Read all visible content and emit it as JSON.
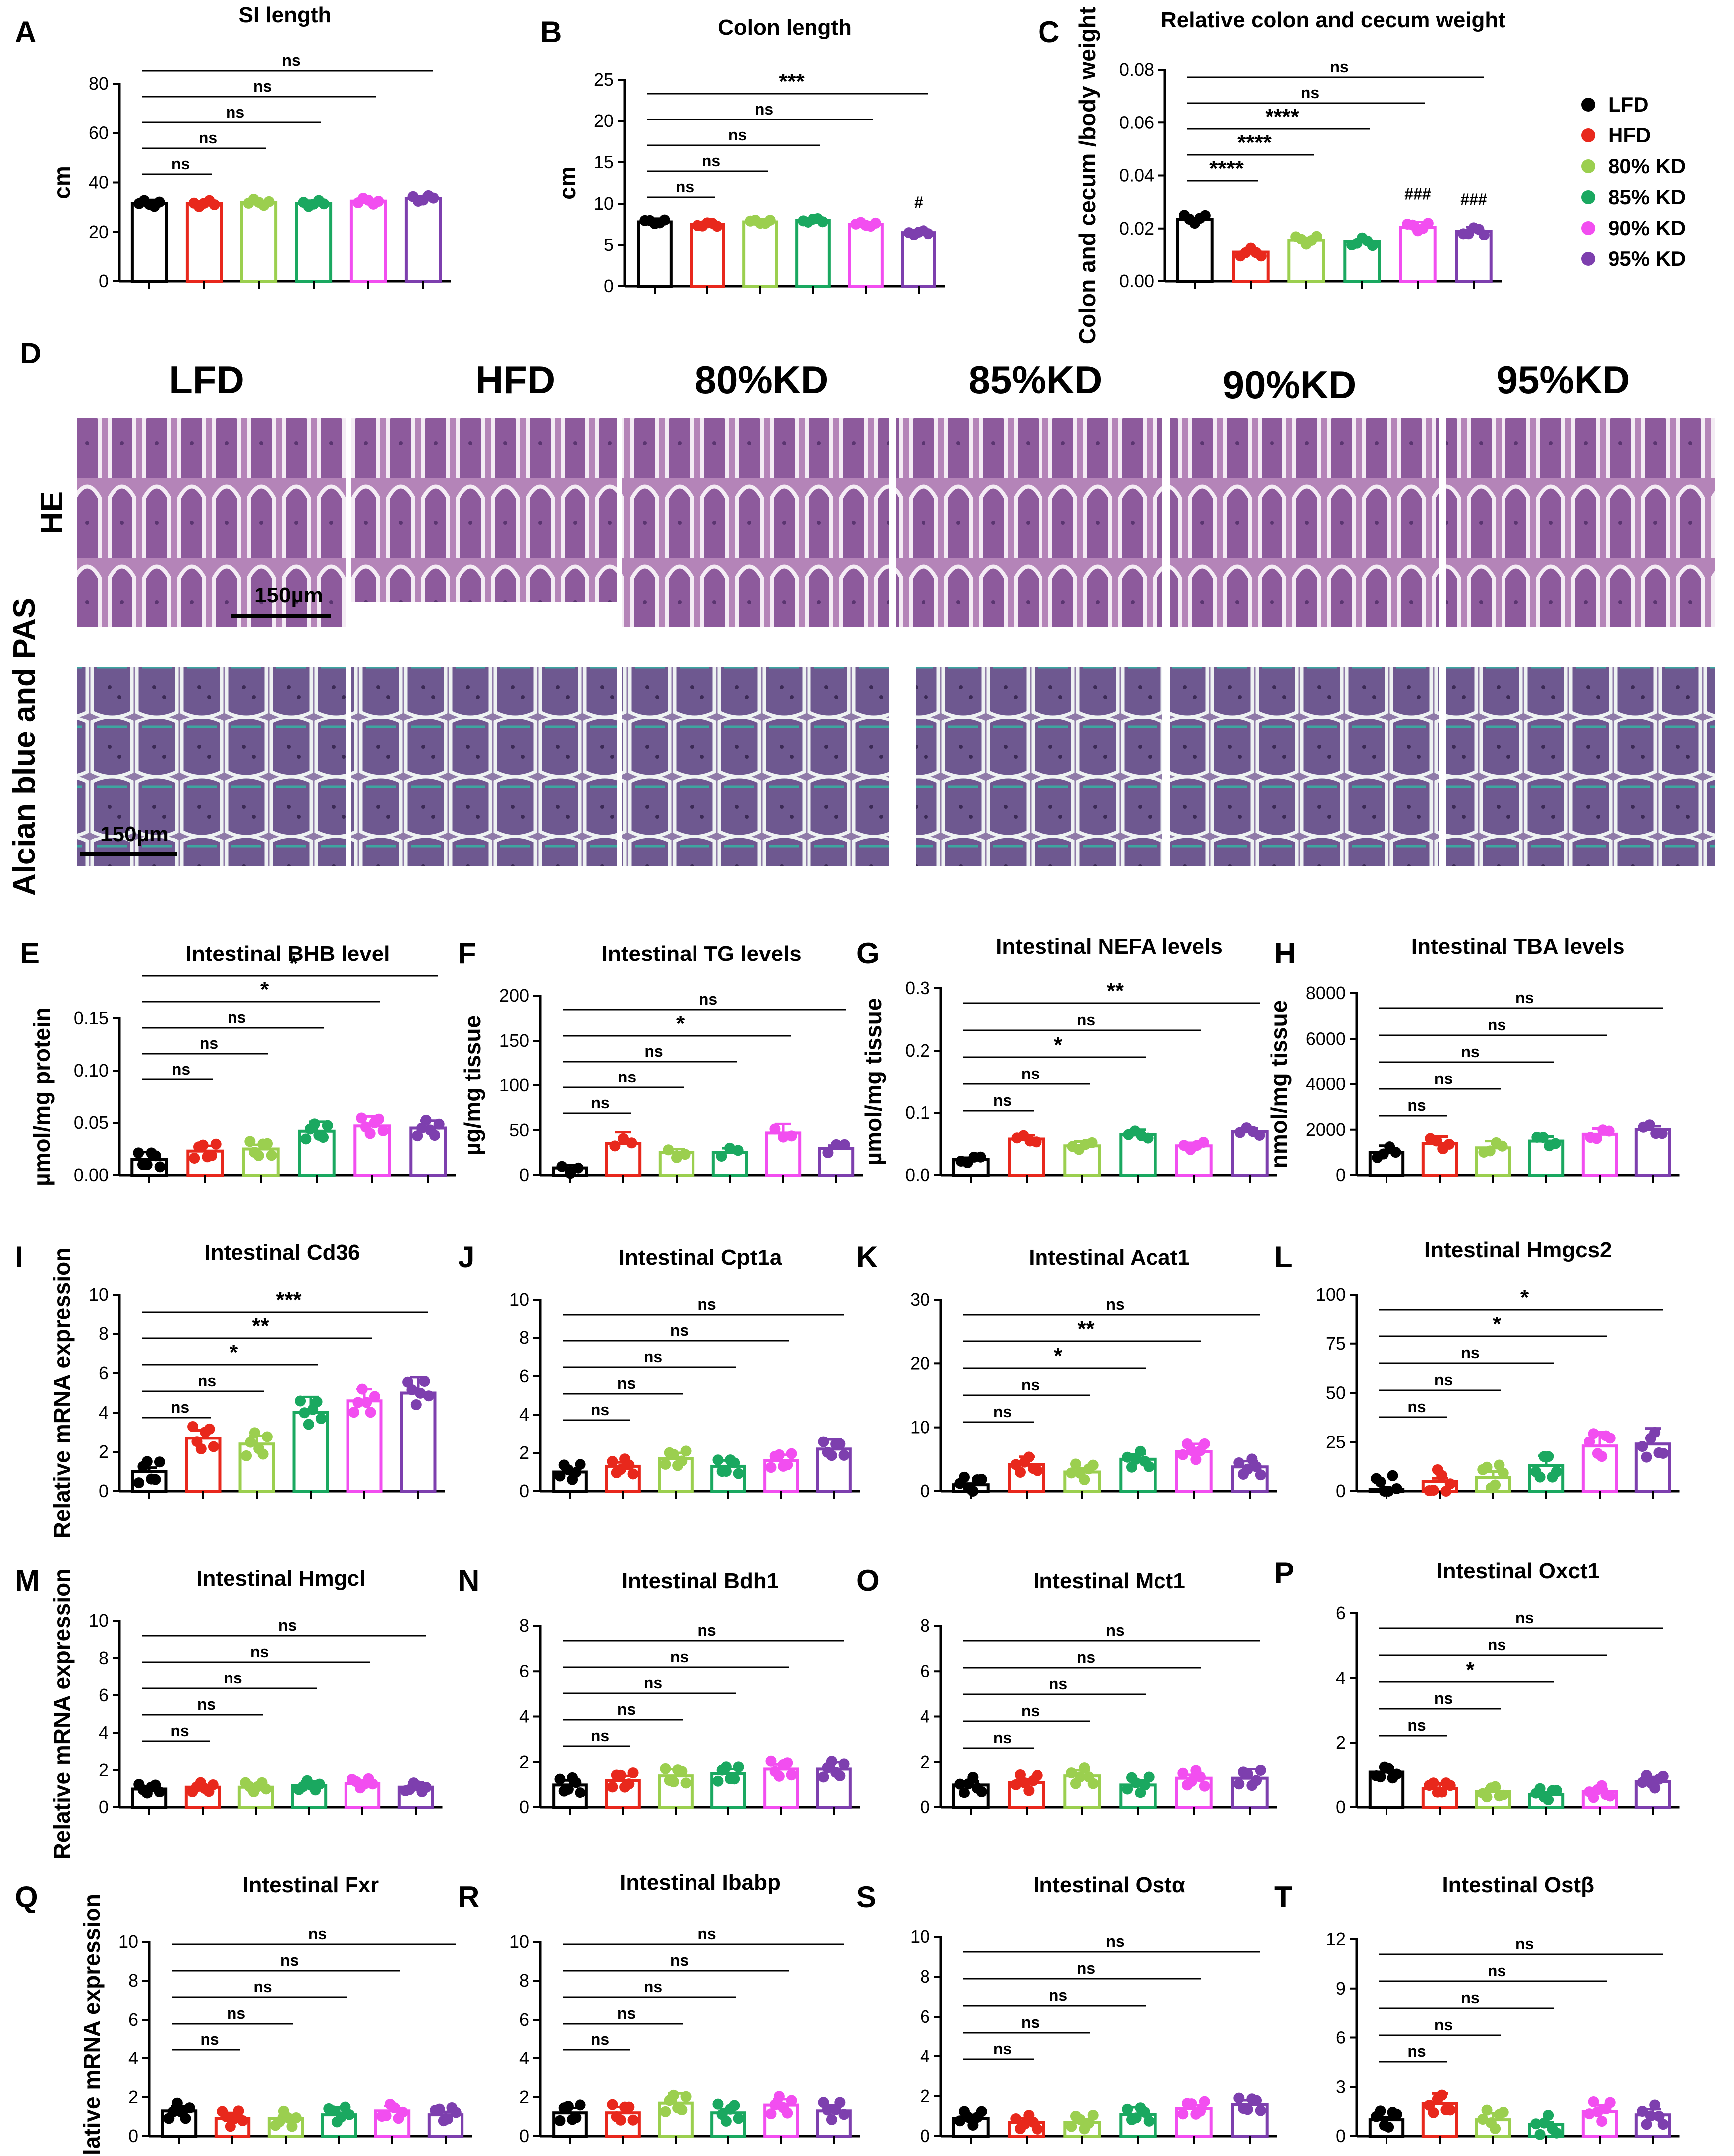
{
  "colors": {
    "LFD": "#000000",
    "HFD": "#e8281c",
    "80% KD": "#9bcf4f",
    "85% KD": "#1aa860",
    "90% KD": "#f24ef0",
    "95% KD": "#7d3fae"
  },
  "legend": [
    "LFD",
    "HFD",
    "80% KD",
    "85% KD",
    "90% KD",
    "95% KD"
  ],
  "histology": {
    "panel_letter": "D",
    "groups": [
      "LFD",
      "HFD",
      "80%KD",
      "85%KD",
      "90%KD",
      "95%KD"
    ],
    "rows": [
      "HE",
      "Alcian blue and PAS"
    ],
    "scale_bar_label": "150µm"
  },
  "chart_data": [
    {
      "id": "A",
      "type": "bar",
      "title": "SI length",
      "ylabel": "cm",
      "ylim": [
        0,
        80
      ],
      "ticks": [
        0,
        20,
        40,
        60,
        80
      ],
      "categories": [
        "LFD",
        "HFD",
        "80% KD",
        "85% KD",
        "90% KD",
        "95% KD"
      ],
      "values": [
        31.5,
        31.5,
        32,
        31.5,
        32.5,
        33.5
      ],
      "sem": [
        1.5,
        1,
        0.5,
        1.2,
        0.6,
        1
      ],
      "n": 5,
      "spread": 2.5,
      "sig": [
        {
          "to": 1,
          "label": "ns"
        },
        {
          "to": 2,
          "label": "ns"
        },
        {
          "to": 3,
          "label": "ns"
        },
        {
          "to": 4,
          "label": "ns"
        },
        {
          "to": 5,
          "label": "ns"
        }
      ]
    },
    {
      "id": "B",
      "type": "bar",
      "title": "Colon length",
      "ylabel": "cm",
      "ylim": [
        0,
        25
      ],
      "ticks": [
        0,
        5,
        10,
        15,
        20,
        25
      ],
      "categories": [
        "LFD",
        "HFD",
        "80% KD",
        "85% KD",
        "90% KD",
        "95% KD"
      ],
      "values": [
        7.8,
        7.5,
        7.8,
        8,
        7.5,
        6.5
      ],
      "sem": [
        0.4,
        0.2,
        0.3,
        0.2,
        0.2,
        0.3
      ],
      "n": 5,
      "spread": 0.5,
      "sig": [
        {
          "to": 1,
          "label": "ns"
        },
        {
          "to": 2,
          "label": "ns"
        },
        {
          "to": 3,
          "label": "ns"
        },
        {
          "to": 4,
          "label": "ns"
        },
        {
          "to": 5,
          "label": "***"
        }
      ],
      "marks": [
        {
          "idx": 5,
          "label": "#"
        }
      ]
    },
    {
      "id": "C",
      "type": "bar",
      "title": "Relative colon and cecum weight",
      "ylabel": "Colon and cecum /body weight",
      "ylim": [
        0,
        0.08
      ],
      "ticks": [
        "0.00",
        "0.02",
        "0.04",
        "0.06",
        "0.08"
      ],
      "categories": [
        "LFD",
        "HFD",
        "80% KD",
        "85% KD",
        "90% KD",
        "95% KD"
      ],
      "values": [
        0.0235,
        0.011,
        0.0155,
        0.015,
        0.0205,
        0.019
      ],
      "sem": [
        0.0005,
        0.001,
        0.001,
        0.0007,
        0.002,
        0.0015
      ],
      "n": 5,
      "spread": 0.003,
      "sig": [
        {
          "to": 1,
          "label": "****"
        },
        {
          "to": 2,
          "label": "****"
        },
        {
          "to": 3,
          "label": "****"
        },
        {
          "to": 4,
          "label": "ns"
        },
        {
          "to": 5,
          "label": "ns"
        }
      ],
      "marks": [
        {
          "idx": 4,
          "label": "###"
        },
        {
          "idx": 5,
          "label": "###"
        }
      ]
    },
    {
      "id": "E",
      "type": "bar",
      "title": "Intestinal BHB level",
      "ylabel": "µmol/mg protein",
      "ylim": [
        0,
        0.15
      ],
      "ticks": [
        "0.00",
        "0.05",
        "0.10",
        "0.15"
      ],
      "categories": [
        "LFD",
        "HFD",
        "80% KD",
        "85% KD",
        "90% KD",
        "95% KD"
      ],
      "values": [
        0.015,
        0.023,
        0.025,
        0.042,
        0.047,
        0.045
      ],
      "sem": [
        0.007,
        0.005,
        0.004,
        0.009,
        0.009,
        0.007
      ],
      "n": 6,
      "spread": 0.015,
      "sig": [
        {
          "to": 1,
          "label": "ns"
        },
        {
          "to": 2,
          "label": "ns"
        },
        {
          "to": 3,
          "label": "ns"
        },
        {
          "to": 4,
          "label": "*"
        },
        {
          "to": 5,
          "label": "*"
        }
      ]
    },
    {
      "id": "F",
      "type": "bar",
      "title": "Intestinal TG levels",
      "ylabel": "µg/mg tissue",
      "ylim": [
        0,
        200
      ],
      "ticks": [
        0,
        50,
        100,
        150,
        200
      ],
      "categories": [
        "LFD",
        "HFD",
        "80% KD",
        "85% KD",
        "90% KD",
        "95% KD"
      ],
      "values": [
        8,
        35,
        25,
        25,
        47,
        30
      ],
      "sem": [
        3,
        13,
        4,
        5,
        10,
        3
      ],
      "n": 3,
      "spread": 12,
      "sig": [
        {
          "to": 1,
          "label": "ns"
        },
        {
          "to": 2,
          "label": "ns"
        },
        {
          "to": 3,
          "label": "ns"
        },
        {
          "to": 4,
          "label": "*"
        },
        {
          "to": 5,
          "label": "ns"
        }
      ]
    },
    {
      "id": "G",
      "type": "bar",
      "title": "Intestinal NEFA levels",
      "ylabel": "µmol/mg tissue",
      "ylim": [
        0,
        0.3
      ],
      "ticks": [
        "0.0",
        "0.1",
        "0.2",
        "0.3"
      ],
      "categories": [
        "LFD",
        "HFD",
        "80% KD",
        "85% KD",
        "90% KD",
        "95% KD"
      ],
      "values": [
        0.025,
        0.058,
        0.047,
        0.065,
        0.047,
        0.07
      ],
      "sem": [
        0.003,
        0.006,
        0.007,
        0.008,
        0.005,
        0.005
      ],
      "n": 4,
      "spread": 0.012,
      "sig": [
        {
          "to": 1,
          "label": "ns"
        },
        {
          "to": 2,
          "label": "ns"
        },
        {
          "to": 3,
          "label": "*"
        },
        {
          "to": 4,
          "label": "ns"
        },
        {
          "to": 5,
          "label": "**"
        }
      ]
    },
    {
      "id": "H",
      "type": "bar",
      "title": "Intestinal TBA levels",
      "ylabel": "nmol/mg tissue",
      "ylim": [
        0,
        8000
      ],
      "ticks": [
        0,
        2000,
        4000,
        6000,
        8000
      ],
      "categories": [
        "LFD",
        "HFD",
        "80% KD",
        "85% KD",
        "90% KD",
        "95% KD"
      ],
      "values": [
        1000,
        1400,
        1200,
        1500,
        1800,
        2000
      ],
      "sem": [
        300,
        300,
        300,
        200,
        250,
        150
      ],
      "n": 4,
      "spread": 500,
      "sig": [
        {
          "to": 1,
          "label": "ns"
        },
        {
          "to": 2,
          "label": "ns"
        },
        {
          "to": 3,
          "label": "ns"
        },
        {
          "to": 4,
          "label": "ns"
        },
        {
          "to": 5,
          "label": "ns"
        }
      ]
    },
    {
      "id": "I",
      "type": "bar",
      "title": "Intestinal Cd36",
      "title_gene": "Cd36",
      "ylabel": "Relative mRNA expression",
      "ylim": [
        0,
        10
      ],
      "ticks": [
        0,
        2,
        4,
        6,
        8,
        10
      ],
      "categories": [
        "LFD",
        "HFD",
        "80% KD",
        "85% KD",
        "90% KD",
        "95% KD"
      ],
      "values": [
        1,
        2.7,
        2.4,
        4,
        4.6,
        5
      ],
      "sem": [
        0.2,
        0.4,
        0.4,
        0.8,
        0.6,
        0.8
      ],
      "n": 6,
      "spread": 1.2,
      "sig": [
        {
          "to": 1,
          "label": "ns"
        },
        {
          "to": 2,
          "label": "ns"
        },
        {
          "to": 3,
          "label": "*"
        },
        {
          "to": 4,
          "label": "**"
        },
        {
          "to": 5,
          "label": "***"
        }
      ]
    },
    {
      "id": "J",
      "type": "bar",
      "title": "Intestinal Cpt1a",
      "title_gene": "Cpt1a",
      "ylabel": "",
      "ylim": [
        0,
        10
      ],
      "ticks": [
        0,
        2,
        4,
        6,
        8,
        10
      ],
      "categories": [
        "LFD",
        "HFD",
        "80% KD",
        "85% KD",
        "90% KD",
        "95% KD"
      ],
      "values": [
        1,
        1.3,
        1.7,
        1.3,
        1.6,
        2.2
      ],
      "sem": [
        0.1,
        0.2,
        0.3,
        0.3,
        0.3,
        0.5
      ],
      "n": 6,
      "spread": 0.8,
      "sig": [
        {
          "to": 1,
          "label": "ns"
        },
        {
          "to": 2,
          "label": "ns"
        },
        {
          "to": 3,
          "label": "ns"
        },
        {
          "to": 4,
          "label": "ns"
        },
        {
          "to": 5,
          "label": "ns"
        }
      ]
    },
    {
      "id": "K",
      "type": "bar",
      "title": "Intestinal Acat1",
      "title_gene": "Acat1",
      "ylabel": "",
      "ylim": [
        0,
        30
      ],
      "ticks": [
        0,
        10,
        20,
        30
      ],
      "categories": [
        "LFD",
        "HFD",
        "80% KD",
        "85% KD",
        "90% KD",
        "95% KD"
      ],
      "values": [
        1,
        4.2,
        3,
        5,
        6.2,
        3.8
      ],
      "sem": [
        0.2,
        1.2,
        0.6,
        0.8,
        1.2,
        0.9
      ],
      "n": 6,
      "spread": 2.5,
      "sig": [
        {
          "to": 1,
          "label": "ns"
        },
        {
          "to": 2,
          "label": "ns"
        },
        {
          "to": 3,
          "label": "*"
        },
        {
          "to": 4,
          "label": "**"
        },
        {
          "to": 5,
          "label": "ns"
        }
      ]
    },
    {
      "id": "L",
      "type": "bar",
      "title": "Intestinal Hmgcs2",
      "title_gene": "Hmgcs2",
      "ylabel": "",
      "ylim": [
        0,
        100
      ],
      "ticks": [
        0,
        25,
        50,
        75,
        100
      ],
      "categories": [
        "LFD",
        "HFD",
        "80% KD",
        "85% KD",
        "90% KD",
        "95% KD"
      ],
      "values": [
        1,
        5,
        7,
        13,
        23,
        24
      ],
      "sem": [
        0.3,
        1.5,
        3,
        5,
        7,
        8
      ],
      "n": 6,
      "spread": 14,
      "sig": [
        {
          "to": 1,
          "label": "ns"
        },
        {
          "to": 2,
          "label": "ns"
        },
        {
          "to": 3,
          "label": "ns"
        },
        {
          "to": 4,
          "label": "*"
        },
        {
          "to": 5,
          "label": "*"
        }
      ]
    },
    {
      "id": "M",
      "type": "bar",
      "title": "Intestinal Hmgcl",
      "title_gene": "Hmgcl",
      "ylabel": "Relative mRNA expression",
      "ylim": [
        0,
        10
      ],
      "ticks": [
        0,
        2,
        4,
        6,
        8,
        10
      ],
      "categories": [
        "LFD",
        "HFD",
        "80% KD",
        "85% KD",
        "90% KD",
        "95% KD"
      ],
      "values": [
        1,
        1.1,
        1.1,
        1.2,
        1.3,
        1.1
      ],
      "sem": [
        0.15,
        0.1,
        0.15,
        0.2,
        0.15,
        0.25
      ],
      "n": 6,
      "spread": 0.5,
      "sig": [
        {
          "to": 1,
          "label": "ns"
        },
        {
          "to": 2,
          "label": "ns"
        },
        {
          "to": 3,
          "label": "ns"
        },
        {
          "to": 4,
          "label": "ns"
        },
        {
          "to": 5,
          "label": "ns"
        }
      ]
    },
    {
      "id": "N",
      "type": "bar",
      "title": "Intestinal Bdh1",
      "title_gene": "Bdh1",
      "ylabel": "",
      "ylim": [
        0,
        8
      ],
      "ticks": [
        0,
        2,
        4,
        6,
        8
      ],
      "categories": [
        "LFD",
        "HFD",
        "80% KD",
        "85% KD",
        "90% KD",
        "95% KD"
      ],
      "values": [
        1,
        1.2,
        1.4,
        1.5,
        1.7,
        1.7
      ],
      "sem": [
        0.2,
        0.2,
        0.3,
        0.2,
        0.2,
        0.3
      ],
      "n": 6,
      "spread": 0.7,
      "sig": [
        {
          "to": 1,
          "label": "ns"
        },
        {
          "to": 2,
          "label": "ns"
        },
        {
          "to": 3,
          "label": "ns"
        },
        {
          "to": 4,
          "label": "ns"
        },
        {
          "to": 5,
          "label": "ns"
        }
      ]
    },
    {
      "id": "O",
      "type": "bar",
      "title": "Intestinal Mct1",
      "title_gene": "Mct1",
      "ylabel": "",
      "ylim": [
        0,
        8
      ],
      "ticks": [
        0,
        2,
        4,
        6,
        8
      ],
      "categories": [
        "LFD",
        "HFD",
        "80% KD",
        "85% KD",
        "90% KD",
        "95% KD"
      ],
      "values": [
        1,
        1.1,
        1.4,
        1,
        1.3,
        1.3
      ],
      "sem": [
        0.15,
        0.15,
        0.25,
        0.2,
        0.15,
        0.4
      ],
      "n": 6,
      "spread": 0.7,
      "sig": [
        {
          "to": 1,
          "label": "ns"
        },
        {
          "to": 2,
          "label": "ns"
        },
        {
          "to": 3,
          "label": "ns"
        },
        {
          "to": 4,
          "label": "ns"
        },
        {
          "to": 5,
          "label": "ns"
        }
      ]
    },
    {
      "id": "P",
      "type": "bar",
      "title": "Intestinal Oxct1",
      "title_gene": "Oxct1",
      "ylabel": "",
      "ylim": [
        0,
        6
      ],
      "ticks": [
        0,
        2,
        4,
        6
      ],
      "categories": [
        "LFD",
        "HFD",
        "80% KD",
        "85% KD",
        "90% KD",
        "95% KD"
      ],
      "values": [
        1.1,
        0.6,
        0.5,
        0.4,
        0.5,
        0.8
      ],
      "sem": [
        0.15,
        0.15,
        0.1,
        0.08,
        0.08,
        0.15
      ],
      "n": 6,
      "spread": 0.4,
      "sig": [
        {
          "to": 1,
          "label": "ns"
        },
        {
          "to": 2,
          "label": "ns"
        },
        {
          "to": 3,
          "label": "*"
        },
        {
          "to": 4,
          "label": "ns"
        },
        {
          "to": 5,
          "label": "ns"
        }
      ]
    },
    {
      "id": "Q",
      "type": "bar",
      "title": "Intestinal Fxr",
      "title_gene": "Fxr",
      "ylabel": "Relative mRNA expression",
      "ylim": [
        0,
        10
      ],
      "ticks": [
        0,
        2,
        4,
        6,
        8,
        10
      ],
      "categories": [
        "LFD",
        "HFD",
        "80% KD",
        "85% KD",
        "90% KD",
        "95% KD"
      ],
      "values": [
        1.3,
        0.9,
        0.9,
        1.1,
        1.3,
        1.1
      ],
      "sem": [
        0.25,
        0.3,
        0.15,
        0.4,
        0.25,
        0.15
      ],
      "n": 6,
      "spread": 0.8,
      "sig": [
        {
          "to": 1,
          "label": "ns"
        },
        {
          "to": 2,
          "label": "ns"
        },
        {
          "to": 3,
          "label": "ns"
        },
        {
          "to": 4,
          "label": "ns"
        },
        {
          "to": 5,
          "label": "ns"
        }
      ]
    },
    {
      "id": "R",
      "type": "bar",
      "title": "Intestinal Ibabp",
      "title_gene": "Ibabp",
      "ylabel": "",
      "ylim": [
        0,
        10
      ],
      "ticks": [
        0,
        2,
        4,
        6,
        8,
        10
      ],
      "categories": [
        "LFD",
        "HFD",
        "80% KD",
        "85% KD",
        "90% KD",
        "95% KD"
      ],
      "values": [
        1.2,
        1.2,
        1.7,
        1.2,
        1.6,
        1.3
      ],
      "sem": [
        0.25,
        0.3,
        0.5,
        0.2,
        0.3,
        0.3
      ],
      "n": 6,
      "spread": 0.9,
      "sig": [
        {
          "to": 1,
          "label": "ns"
        },
        {
          "to": 2,
          "label": "ns"
        },
        {
          "to": 3,
          "label": "ns"
        },
        {
          "to": 4,
          "label": "ns"
        },
        {
          "to": 5,
          "label": "ns"
        }
      ]
    },
    {
      "id": "S",
      "type": "bar",
      "title": "Intestinal Ostα",
      "title_gene": "Ostα",
      "ylabel": "",
      "ylim": [
        0,
        10
      ],
      "ticks": [
        0,
        2,
        4,
        6,
        8,
        10
      ],
      "categories": [
        "LFD",
        "HFD",
        "80% KD",
        "85% KD",
        "90% KD",
        "95% KD"
      ],
      "values": [
        0.9,
        0.7,
        0.7,
        1.1,
        1.4,
        1.6
      ],
      "sem": [
        0.1,
        0.2,
        0.15,
        0.35,
        0.15,
        0.2
      ],
      "n": 6,
      "spread": 0.7,
      "sig": [
        {
          "to": 1,
          "label": "ns"
        },
        {
          "to": 2,
          "label": "ns"
        },
        {
          "to": 3,
          "label": "ns"
        },
        {
          "to": 4,
          "label": "ns"
        },
        {
          "to": 5,
          "label": "ns"
        }
      ]
    },
    {
      "id": "T",
      "type": "bar",
      "title": "Intestinal Ostβ",
      "title_gene": "Ostβ",
      "ylabel": "",
      "ylim": [
        0,
        12
      ],
      "ticks": [
        0,
        3,
        6,
        9,
        12
      ],
      "categories": [
        "LFD",
        "HFD",
        "80% KD",
        "85% KD",
        "90% KD",
        "95% KD"
      ],
      "values": [
        1,
        2,
        1,
        0.7,
        1.5,
        1.3
      ],
      "sem": [
        0.15,
        0.6,
        0.4,
        0.15,
        0.4,
        0.35
      ],
      "n": 6,
      "spread": 1.2,
      "sig": [
        {
          "to": 1,
          "label": "ns"
        },
        {
          "to": 2,
          "label": "ns"
        },
        {
          "to": 3,
          "label": "ns"
        },
        {
          "to": 4,
          "label": "ns"
        },
        {
          "to": 5,
          "label": "ns"
        }
      ]
    }
  ]
}
